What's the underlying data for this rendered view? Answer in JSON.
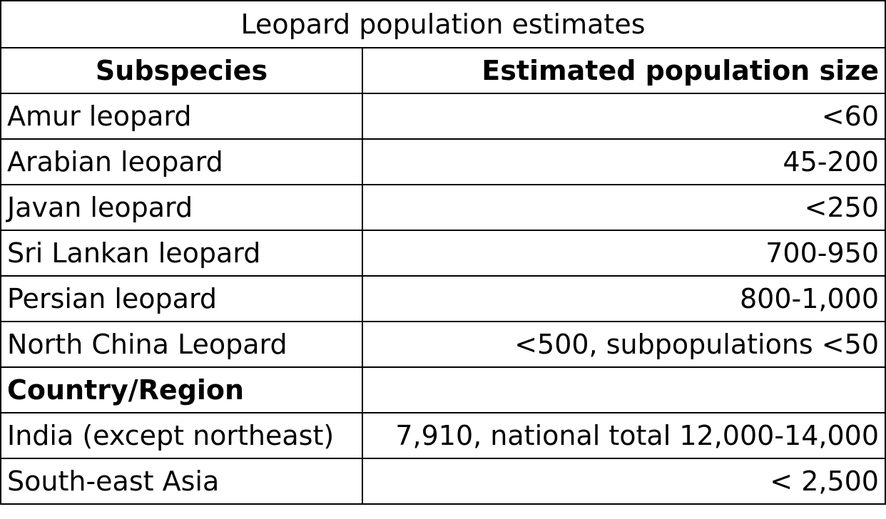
{
  "title": "Leopard population estimates",
  "headers": {
    "subspecies": "Subspecies",
    "population": "Estimated population size"
  },
  "subspecies_rows": [
    {
      "name": "Amur leopard",
      "value": "<60"
    },
    {
      "name": "Arabian leopard",
      "value": "45-200"
    },
    {
      "name": "Javan leopard",
      "value": "<250"
    },
    {
      "name": "Sri Lankan leopard",
      "value": "700-950"
    },
    {
      "name": "Persian leopard",
      "value": "800-1,000"
    },
    {
      "name": "North China Leopard",
      "value": "<500, subpopulations <50"
    }
  ],
  "region_section": {
    "label": "Country/Region",
    "value": ""
  },
  "region_rows": [
    {
      "name": "India (except northeast)",
      "value": "7,910, national total 12,000-14,000"
    },
    {
      "name": "South-east Asia",
      "value": "< 2,500"
    }
  ]
}
